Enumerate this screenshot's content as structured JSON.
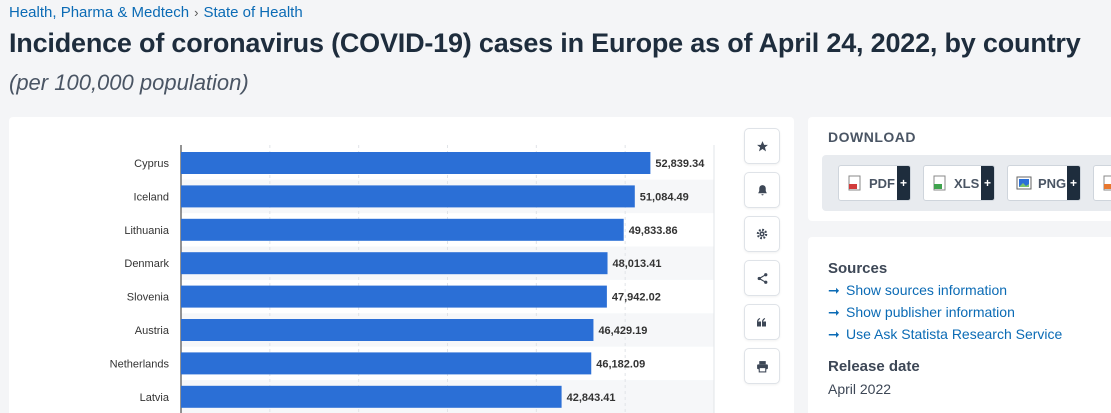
{
  "breadcrumb": {
    "item1": "Health, Pharma & Medtech",
    "separator": "›",
    "item2": "State of Health"
  },
  "title": "Incidence of coronavirus (COVID-19) cases in Europe as of April 24, 2022, by country",
  "subtitle": "(per 100,000 population)",
  "toolbar": {
    "icons": [
      "star-icon",
      "bell-icon",
      "gear-icon",
      "share-icon",
      "quote-icon",
      "print-icon"
    ]
  },
  "download": {
    "title": "DOWNLOAD",
    "buttons": [
      {
        "label": "PDF",
        "plus": "+"
      },
      {
        "label": "XLS",
        "plus": "+"
      },
      {
        "label": "PNG",
        "plus": "+"
      }
    ]
  },
  "sources": {
    "heading": "Sources",
    "links": [
      {
        "arrow": "➞",
        "label": "Show sources information"
      },
      {
        "arrow": "➞",
        "label": "Show publisher information"
      },
      {
        "arrow": "➞",
        "label": "Use Ask Statista Research Service"
      }
    ],
    "release_heading": "Release date",
    "release_value": "April 2022"
  },
  "colors": {
    "bar": "#2b6fd6",
    "accent_link": "#0b6bb5",
    "title": "#1e2d3d"
  },
  "chart_data": {
    "type": "bar",
    "orientation": "horizontal",
    "categories": [
      "Cyprus",
      "Iceland",
      "Lithuania",
      "Denmark",
      "Slovenia",
      "Austria",
      "Netherlands",
      "Latvia"
    ],
    "values": [
      52839.34,
      51084.49,
      49833.86,
      48013.41,
      47942.02,
      46429.19,
      46182.09,
      42843.41
    ],
    "value_labels": [
      "52,839.34",
      "51,084.49",
      "49,833.86",
      "48,013.41",
      "47,942.02",
      "46,429.19",
      "46,182.09",
      "42,843.41"
    ],
    "title": "",
    "xlabel": "",
    "ylabel": "",
    "xlim": [
      0,
      60000
    ],
    "grid": true
  }
}
